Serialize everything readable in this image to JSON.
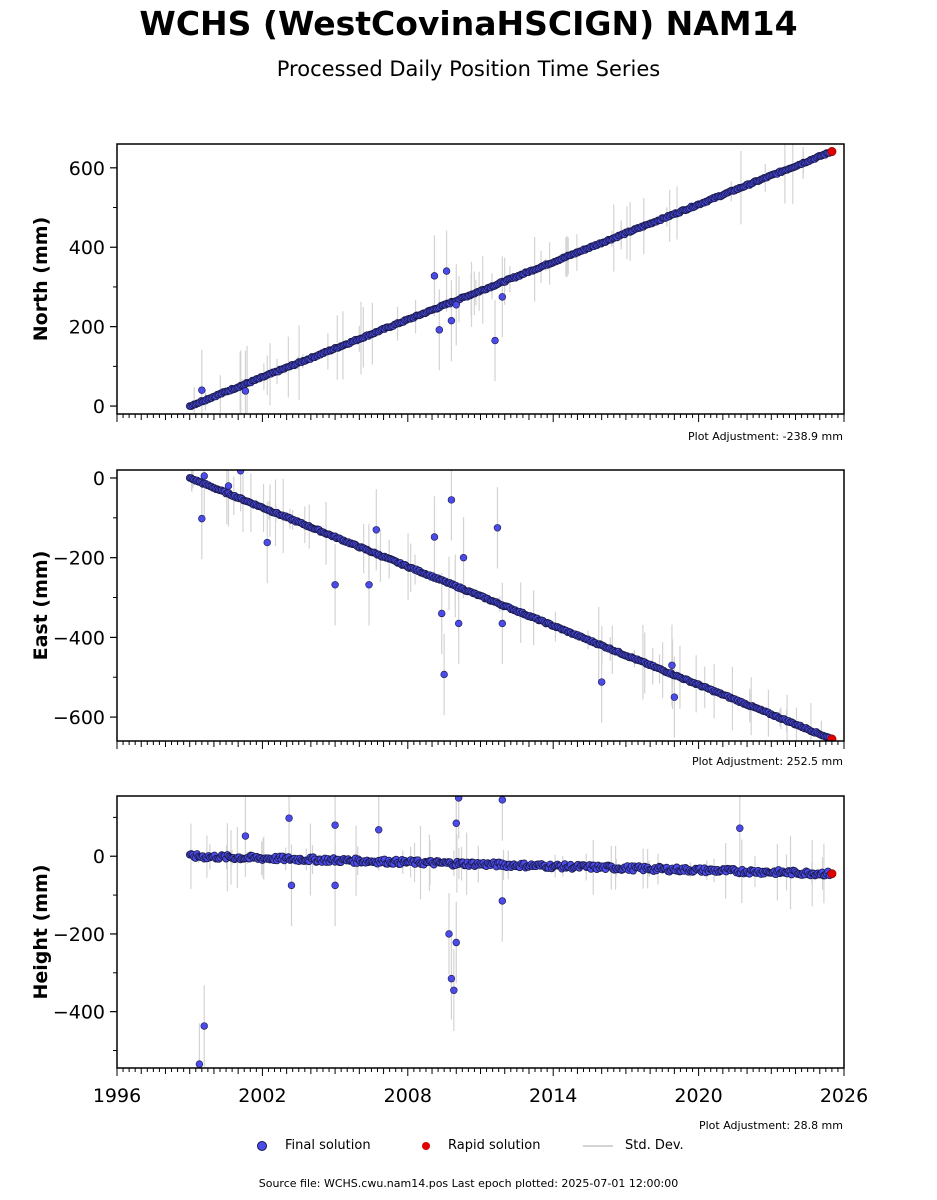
{
  "title": "WCHS (WestCovinaHSCIGN) NAM14",
  "subtitle": "Processed Daily Position Time Series",
  "colors": {
    "final": "#4b4bea",
    "final_edge": "#1a1a4a",
    "rapid": "#e00000",
    "stddev": "#d3d3d3"
  },
  "chart_data": [
    {
      "type": "scatter",
      "ylabel": "North (mm)",
      "xlim": [
        1996,
        2026
      ],
      "ylim": [
        -20,
        660
      ],
      "yticks": [
        0,
        200,
        400,
        600
      ],
      "trend": {
        "start": [
          1999.0,
          0
        ],
        "end": [
          2025.5,
          641
        ]
      },
      "outliers": [
        [
          1999.5,
          40
        ],
        [
          2001.3,
          38
        ],
        [
          2009.1,
          328
        ],
        [
          2009.3,
          192
        ],
        [
          2009.6,
          340
        ],
        [
          2009.8,
          215
        ],
        [
          2010.0,
          255
        ],
        [
          2011.6,
          165
        ],
        [
          2011.9,
          275
        ]
      ],
      "series": [
        {
          "name": "Final solution",
          "x_range": [
            1999.0,
            2025.4
          ]
        },
        {
          "name": "Rapid solution",
          "x_range": [
            2025.4,
            2025.5
          ]
        }
      ],
      "adjustment": "Plot Adjustment: -238.9 mm"
    },
    {
      "type": "scatter",
      "ylabel": "East (mm)",
      "xlim": [
        1996,
        2026
      ],
      "ylim": [
        -660,
        20
      ],
      "yticks": [
        0,
        -200,
        -400,
        -600
      ],
      "trend": {
        "start": [
          1999.0,
          0
        ],
        "end": [
          2025.5,
          -655
        ]
      },
      "outliers": [
        [
          1999.5,
          -102
        ],
        [
          1999.6,
          5
        ],
        [
          2000.6,
          -20
        ],
        [
          2001.1,
          18
        ],
        [
          2002.2,
          -162
        ],
        [
          2005.0,
          -268
        ],
        [
          2006.7,
          -130
        ],
        [
          2006.4,
          -268
        ],
        [
          2009.1,
          -148
        ],
        [
          2009.4,
          -340
        ],
        [
          2009.5,
          -493
        ],
        [
          2009.8,
          -55
        ],
        [
          2010.1,
          -365
        ],
        [
          2010.3,
          -200
        ],
        [
          2011.7,
          -125
        ],
        [
          2011.9,
          -365
        ],
        [
          2016.0,
          -512
        ],
        [
          2018.9,
          -470
        ],
        [
          2019.0,
          -550
        ]
      ],
      "series": [
        {
          "name": "Final solution",
          "x_range": [
            1999.0,
            2025.4
          ]
        },
        {
          "name": "Rapid solution",
          "x_range": [
            2025.4,
            2025.5
          ]
        }
      ],
      "adjustment": "Plot Adjustment: 252.5 mm"
    },
    {
      "type": "scatter",
      "ylabel": "Height (mm)",
      "xlim": [
        1996,
        2026
      ],
      "xticks": [
        1996,
        2002,
        2008,
        2014,
        2020,
        2026
      ],
      "ylim": [
        -545,
        155
      ],
      "yticks": [
        0,
        -200,
        -400
      ],
      "trend": {
        "start": [
          1999.0,
          0
        ],
        "end": [
          2025.5,
          -45
        ]
      },
      "outliers": [
        [
          1999.4,
          -535
        ],
        [
          1999.6,
          -437
        ],
        [
          2001.3,
          52
        ],
        [
          2003.1,
          98
        ],
        [
          2003.2,
          -75
        ],
        [
          2005.0,
          80
        ],
        [
          2005.0,
          -75
        ],
        [
          2006.8,
          68
        ],
        [
          2009.7,
          -200
        ],
        [
          2009.8,
          -315
        ],
        [
          2009.9,
          -345
        ],
        [
          2010.0,
          -222
        ],
        [
          2010.0,
          85
        ],
        [
          2010.1,
          150
        ],
        [
          2011.9,
          145
        ],
        [
          2011.9,
          -115
        ],
        [
          2021.7,
          72
        ]
      ],
      "series": [
        {
          "name": "Final solution",
          "x_range": [
            1999.0,
            2025.4
          ]
        },
        {
          "name": "Rapid solution",
          "x_range": [
            2025.4,
            2025.5
          ]
        }
      ],
      "adjustment": "Plot Adjustment: 28.8 mm"
    }
  ],
  "legend": [
    {
      "label": "Final solution"
    },
    {
      "label": "Rapid solution"
    },
    {
      "label": "Std. Dev."
    }
  ],
  "source": "Source file: WCHS.cwu.nam14.pos  Last epoch plotted: 2025-07-01 12:00:00"
}
